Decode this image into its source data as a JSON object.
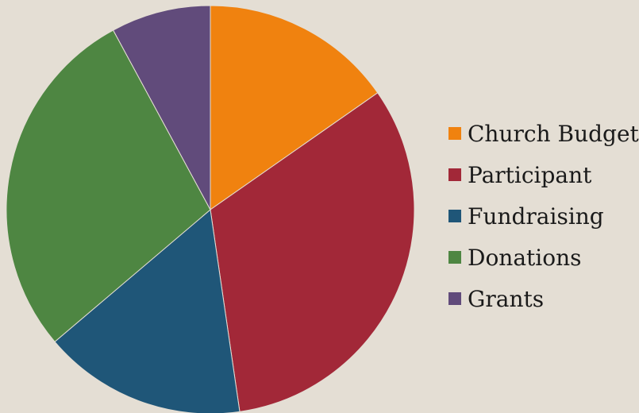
{
  "chart_data": {
    "type": "pie",
    "title": "",
    "start_angle_deg": 0,
    "direction": "clockwise",
    "legend_position": "right",
    "slices": [
      {
        "label": "Church Budget",
        "value": 15.3,
        "color": "#f0820f"
      },
      {
        "label": "Participant",
        "value": 32.4,
        "color": "#a22838"
      },
      {
        "label": "Fundraising",
        "value": 16.1,
        "color": "#1f5678"
      },
      {
        "label": "Donations",
        "value": 28.3,
        "color": "#4e8642"
      },
      {
        "label": "Grants",
        "value": 7.9,
        "color": "#614b7b"
      }
    ]
  }
}
